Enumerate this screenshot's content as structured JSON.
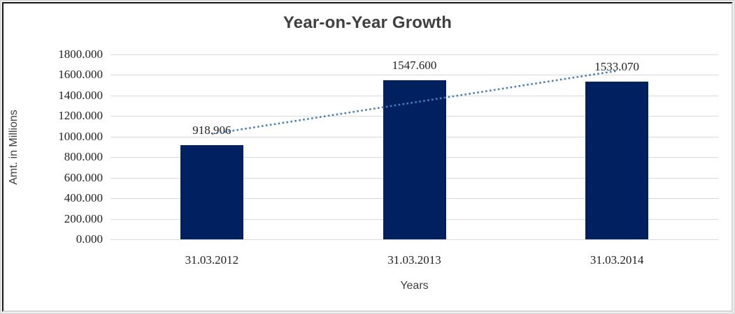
{
  "chart_data": {
    "type": "bar",
    "title": "Year-on-Year Growth",
    "xlabel": "Years",
    "ylabel": "Amt. in Millions",
    "categories": [
      "31.03.2012",
      "31.03.2013",
      "31.03.2014"
    ],
    "values": [
      918.906,
      1547.6,
      1533.07
    ],
    "data_labels": [
      "918.906",
      "1547.600",
      "1533.070"
    ],
    "ylim": [
      0,
      1800
    ],
    "ytick_step": 200,
    "ytick_labels": [
      "0.000",
      "200.000",
      "400.000",
      "600.000",
      "800.000",
      "1000.000",
      "1200.000",
      "1400.000",
      "1600.000",
      "1800.000"
    ],
    "grid": true,
    "legend": "none",
    "trendline": {
      "type": "linear",
      "style": "dotted",
      "color": "#4a7ebb"
    },
    "colors": {
      "bar": "#002060",
      "gridline": "#d9d9d9",
      "title_text": "#3f3f3f",
      "tick_text": "#212121",
      "axis_title_text": "#3f3f3f",
      "background": "#ffffff"
    }
  }
}
